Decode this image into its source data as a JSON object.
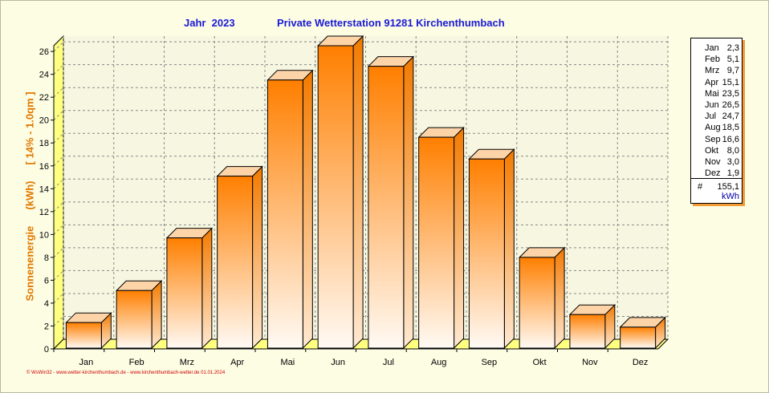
{
  "header": {
    "year_title": "Jahr  2023",
    "station_title": "Private Wetterstation 91281 Kirchenthumbach"
  },
  "footer": {
    "text": "© WsWin32  -  www.wetter-kirchenthumbach.de  -  www.kirchenthumbach-wetter.de   01.01.2024"
  },
  "legend": {
    "rows": [
      {
        "month": "Jan",
        "value": "2,3"
      },
      {
        "month": "Feb",
        "value": "5,1"
      },
      {
        "month": "Mrz",
        "value": "9,7"
      },
      {
        "month": "Apr",
        "value": "15,1"
      },
      {
        "month": "Mai",
        "value": "23,5"
      },
      {
        "month": "Jun",
        "value": "26,5"
      },
      {
        "month": "Jul",
        "value": "24,7"
      },
      {
        "month": "Aug",
        "value": "18,5"
      },
      {
        "month": "Sep",
        "value": "16,6"
      },
      {
        "month": "Okt",
        "value": "8,0"
      },
      {
        "month": "Nov",
        "value": "3,0"
      },
      {
        "month": "Dez",
        "value": "1,9"
      }
    ],
    "total_symbol": "#",
    "total": "155,1",
    "unit": "kWh"
  },
  "chart_data": {
    "type": "bar",
    "title": "Jahr  2023   Private Wetterstation 91281 Kirchenthumbach",
    "ylabel_parts": [
      "Sonnenenergie",
      "(kWh)",
      "[ 14% - 1.0qm ]"
    ],
    "xlabel": "",
    "categories": [
      "Jan",
      "Feb",
      "Mrz",
      "Apr",
      "Mai",
      "Jun",
      "Jul",
      "Aug",
      "Sep",
      "Okt",
      "Nov",
      "Dez"
    ],
    "values": [
      2.3,
      5.1,
      9.7,
      15.1,
      23.5,
      26.5,
      24.7,
      18.5,
      16.6,
      8.0,
      3.0,
      1.9
    ],
    "ylim": [
      0,
      26.5
    ],
    "yticks": [
      0,
      2,
      4,
      6,
      8,
      10,
      12,
      14,
      16,
      18,
      20,
      22,
      24,
      26
    ],
    "grid": true,
    "legend_position": "right",
    "colors": {
      "bar_top": "#ff7f00",
      "bar_bottom": "#fffaf4",
      "bar_side": "#f27a00",
      "bar_cap": "#fdd4a8",
      "floor": "#ffff80",
      "text_title": "#1a1ad6",
      "text_ylabel": "#e07800"
    }
  }
}
